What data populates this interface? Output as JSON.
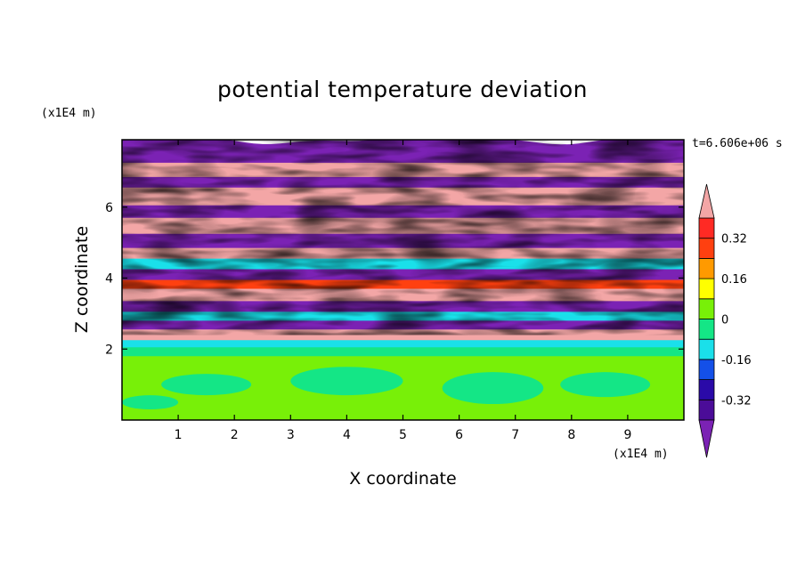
{
  "chart_data": {
    "type": "heatmap",
    "title": "potential temperature deviation",
    "xlabel": "X coordinate",
    "ylabel": "Z coordinate",
    "x_unit": "(x1E4 m)",
    "z_unit": "(x1E4 m)",
    "time_label": "t=6.606e+06 s",
    "xlim": [
      0,
      10
    ],
    "ylim": [
      0,
      7.9
    ],
    "x_ticks": [
      "1",
      "2",
      "3",
      "4",
      "5",
      "6",
      "7",
      "8",
      "9"
    ],
    "y_ticks": [
      "2",
      "4",
      "6"
    ],
    "colorbar": {
      "levels": [
        -0.4,
        -0.32,
        -0.24,
        -0.16,
        -0.08,
        0,
        0.08,
        0.16,
        0.24,
        0.32,
        0.4
      ],
      "labels": [
        "0.32",
        "0.16",
        "0",
        "-0.16",
        "-0.32"
      ],
      "colors_low_to_high": [
        "#4b0c98",
        "#2a0aa8",
        "#1450e8",
        "#1ae0ea",
        "#14e686",
        "#78f008",
        "#ffff00",
        "#ff9a00",
        "#ff4010",
        "#ff2a24"
      ],
      "under_color": "#7b22b4",
      "over_color": "#f3a6a6",
      "extend": "both"
    }
  }
}
